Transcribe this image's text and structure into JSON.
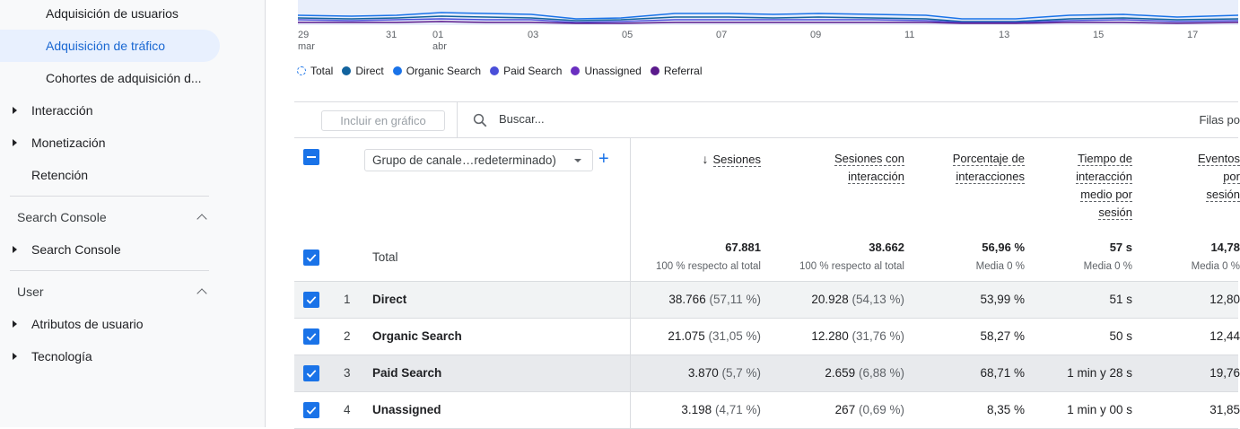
{
  "sidebar": {
    "items": [
      {
        "label": "Adquisición de usuarios"
      },
      {
        "label": "Adquisición de tráfico"
      },
      {
        "label": "Cohortes de adquisición d..."
      },
      {
        "label": "Interacción"
      },
      {
        "label": "Monetización"
      },
      {
        "label": "Retención"
      }
    ],
    "section_search_console": "Search Console",
    "search_console_item": "Search Console",
    "section_user": "User",
    "user_items": [
      {
        "label": "Atributos de usuario"
      },
      {
        "label": "Tecnología"
      }
    ]
  },
  "chart": {
    "xticks": [
      {
        "day": "29",
        "month": "mar"
      },
      {
        "day": "31",
        "month": ""
      },
      {
        "day": "01",
        "month": "abr"
      },
      {
        "day": "03",
        "month": ""
      },
      {
        "day": "05",
        "month": ""
      },
      {
        "day": "07",
        "month": ""
      },
      {
        "day": "09",
        "month": ""
      },
      {
        "day": "11",
        "month": ""
      },
      {
        "day": "13",
        "month": ""
      },
      {
        "day": "15",
        "month": ""
      },
      {
        "day": "17",
        "month": ""
      }
    ],
    "legend": [
      {
        "label": "Total",
        "color": "#1a73e8"
      },
      {
        "label": "Direct",
        "color": "#12639e"
      },
      {
        "label": "Organic Search",
        "color": "#1a73e8"
      },
      {
        "label": "Paid Search",
        "color": "#4a4fd9"
      },
      {
        "label": "Unassigned",
        "color": "#6a2fc0"
      },
      {
        "label": "Referral",
        "color": "#5b1a8c"
      }
    ]
  },
  "toolbar": {
    "include_label": "Incluir en gráfico",
    "search_placeholder": "Buscar...",
    "rows_label": "Filas po"
  },
  "table": {
    "dimension_select": "Grupo de canale…redeterminado)",
    "add_dimension": "+",
    "columns": {
      "sessions": "Sesiones",
      "engaged_sessions_1": "Sesiones con",
      "engaged_sessions_2": "interacción",
      "engagement_rate_1": "Porcentaje de",
      "engagement_rate_2": "interacciones",
      "avg_time_1": "Tiempo de",
      "avg_time_2": "interacción",
      "avg_time_3": "medio por",
      "avg_time_4": "sesión",
      "events_1": "Eventos",
      "events_2": "por",
      "events_3": "sesión"
    },
    "total": {
      "label": "Total",
      "sessions": "67.881",
      "sessions_sub": "100 % respecto al total",
      "engaged": "38.662",
      "engaged_sub": "100 % respecto al total",
      "rate": "56,96 %",
      "rate_sub": "Media 0 %",
      "time": "57 s",
      "time_sub": "Media 0 %",
      "events": "14,78",
      "events_sub": "Media 0 %"
    },
    "rows": [
      {
        "idx": "1",
        "channel": "Direct",
        "sessions": "38.766",
        "sessions_pct": "(57,11 %)",
        "engaged": "20.928",
        "engaged_pct": "(54,13 %)",
        "rate": "53,99 %",
        "time": "51 s",
        "events": "12,80"
      },
      {
        "idx": "2",
        "channel": "Organic Search",
        "sessions": "21.075",
        "sessions_pct": "(31,05 %)",
        "engaged": "12.280",
        "engaged_pct": "(31,76 %)",
        "rate": "58,27 %",
        "time": "50 s",
        "events": "12,44"
      },
      {
        "idx": "3",
        "channel": "Paid Search",
        "sessions": "3.870",
        "sessions_pct": "(5,7 %)",
        "engaged": "2.659",
        "engaged_pct": "(6,88 %)",
        "rate": "68,71 %",
        "time": "1 min y 28 s",
        "events": "19,76"
      },
      {
        "idx": "4",
        "channel": "Unassigned",
        "sessions": "3.198",
        "sessions_pct": "(4,71 %)",
        "engaged": "267",
        "engaged_pct": "(0,69 %)",
        "rate": "8,35 %",
        "time": "1 min y 00 s",
        "events": "31,85"
      }
    ]
  }
}
